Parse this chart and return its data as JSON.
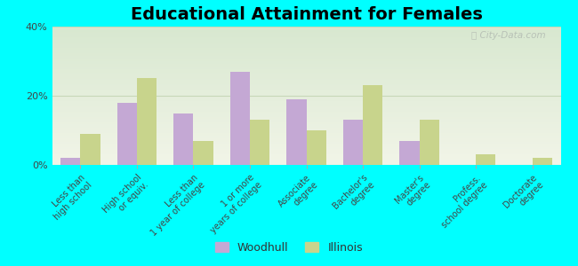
{
  "title": "Educational Attainment for Females",
  "categories": [
    "Less than\nhigh school",
    "High school\nor equiv.",
    "Less than\n1 year of college",
    "1 or more\nyears of college",
    "Associate\ndegree",
    "Bachelor's\ndegree",
    "Master's\ndegree",
    "Profess.\nschool degree",
    "Doctorate\ndegree"
  ],
  "woodhull_values": [
    2,
    18,
    15,
    27,
    19,
    13,
    7,
    0,
    0
  ],
  "illinois_values": [
    9,
    25,
    7,
    13,
    10,
    23,
    13,
    3,
    2
  ],
  "woodhull_color": "#c4a8d4",
  "illinois_color": "#c8d48c",
  "background_color": "#00ffff",
  "ylim": [
    0,
    40
  ],
  "yticks": [
    0,
    20,
    40
  ],
  "ytick_labels": [
    "0%",
    "20%",
    "40%"
  ],
  "bar_width": 0.35,
  "title_fontsize": 14,
  "tick_fontsize": 7,
  "legend_fontsize": 9,
  "watermark": "Ⓢ City-Data.com"
}
